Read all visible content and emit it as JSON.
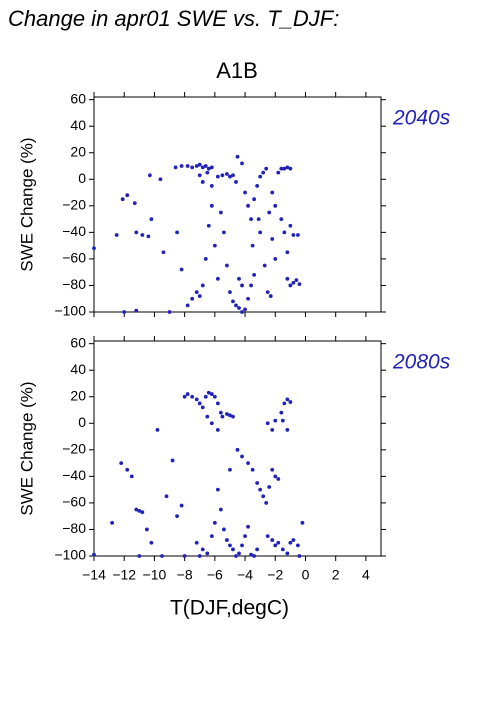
{
  "title": "Change in apr01 SWE vs. T_DJF:",
  "chart_data": [
    {
      "type": "scatter",
      "title": "A1B",
      "annotation": "2040s",
      "y_label": "SWE Change (%)",
      "color": "#2222b8",
      "xlim": [
        -14,
        5
      ],
      "ylim": [
        -100,
        62
      ],
      "xticks": [
        -14,
        -12,
        -10,
        -8,
        -6,
        -4,
        -2,
        0,
        2,
        4
      ],
      "yticks": [
        {
          "value": 60,
          "label": "60"
        },
        {
          "value": 40,
          "label": "40"
        },
        {
          "value": 20,
          "label": "20"
        },
        {
          "value": 0,
          "label": "0"
        },
        {
          "value": -20,
          "label": "−20"
        },
        {
          "value": -40,
          "label": "−40"
        },
        {
          "value": -60,
          "label": "−60"
        },
        {
          "value": -80,
          "label": "−80"
        },
        {
          "value": -100,
          "label": "−100"
        }
      ],
      "x": [
        -14,
        -12.5,
        -12.1,
        -11.8,
        -11.3,
        -11.2,
        -10.8,
        -10.4,
        -10.2,
        -10.3,
        -9.6,
        -9.4,
        -8.6,
        -8.2,
        -7.8,
        -7.5,
        -7.2,
        -7.0,
        -6.8,
        -6.6,
        -6.4,
        -6.2,
        -6.5,
        -7.0,
        -6.8,
        -6.2,
        -5.8,
        -5.5,
        -5.2,
        -5.0,
        -4.8,
        -4.6,
        -4.5,
        -4.2,
        -8.5,
        -8.2,
        -7.8,
        -7.5,
        -7.2,
        -7.0,
        -6.8,
        -6.6,
        -6.4,
        -6.2,
        -6.0,
        -5.8,
        -5.6,
        -5.4,
        -5.2,
        -5.0,
        -4.8,
        -4.6,
        -4.4,
        -4.2,
        -4.0,
        -3.8,
        -3.6,
        -3.4,
        -4.4,
        -4.2,
        -4.0,
        -3.8,
        -3.6,
        -3.4,
        -3.2,
        -3.0,
        -2.8,
        -2.6,
        -2.4,
        -2.2,
        -2.0,
        -2.2,
        -2.0,
        -1.8,
        -1.6,
        -1.4,
        -1.2,
        -1.0,
        -1.6,
        -1.4,
        -1.2,
        -1.0,
        -0.8,
        -0.5,
        -1.2,
        -1.0,
        -0.8,
        -0.6,
        -0.4,
        -12,
        -11.2,
        -9,
        -3.5,
        -3.0,
        -2.7,
        -2.5,
        -2.3,
        -3.1
      ],
      "values": [
        -52,
        -42,
        -15,
        -12,
        -18,
        -40,
        -42,
        -43,
        -30,
        3,
        0,
        -55,
        9,
        10,
        10,
        9,
        10,
        11,
        9,
        10,
        8,
        9,
        5,
        3,
        -2,
        -5,
        2,
        3,
        4,
        2,
        3,
        -2,
        17,
        12,
        -40,
        -68,
        -95,
        -90,
        -85,
        -88,
        -80,
        -60,
        -35,
        -20,
        -50,
        -75,
        -25,
        -40,
        -65,
        -85,
        -92,
        -95,
        -97,
        -100,
        -98,
        -90,
        -80,
        -72,
        -75,
        -80,
        -10,
        -20,
        -30,
        -15,
        -5,
        2,
        5,
        8,
        -25,
        -45,
        -60,
        -10,
        -20,
        5,
        8,
        8,
        9,
        8,
        -30,
        -40,
        -55,
        -35,
        -42,
        -42,
        -75,
        -80,
        -78,
        -76,
        -79,
        -100,
        -99,
        -100,
        -50,
        -40,
        -65,
        -85,
        -88,
        -30
      ]
    },
    {
      "type": "scatter",
      "annotation": "2080s",
      "y_label": "SWE Change (%)",
      "x_label": "T(DJF,degC)",
      "color": "#2222b8",
      "xlim": [
        -14,
        5
      ],
      "ylim": [
        -100,
        62
      ],
      "xticks": [
        {
          "value": -14,
          "label": "−14"
        },
        {
          "value": -12,
          "label": "−12"
        },
        {
          "value": -10,
          "label": "−10"
        },
        {
          "value": -8,
          "label": "−8"
        },
        {
          "value": -6,
          "label": "−6"
        },
        {
          "value": -4,
          "label": "−4"
        },
        {
          "value": -2,
          "label": "−2"
        },
        {
          "value": 0,
          "label": "0"
        },
        {
          "value": 2,
          "label": "2"
        },
        {
          "value": 4,
          "label": "4"
        }
      ],
      "yticks": [
        {
          "value": 60,
          "label": "60"
        },
        {
          "value": 40,
          "label": "40"
        },
        {
          "value": 20,
          "label": "20"
        },
        {
          "value": 0,
          "label": "0"
        },
        {
          "value": -20,
          "label": "−20"
        },
        {
          "value": -40,
          "label": "−40"
        },
        {
          "value": -60,
          "label": "−60"
        },
        {
          "value": -80,
          "label": "−80"
        },
        {
          "value": -100,
          "label": "−100"
        }
      ],
      "x": [
        -14,
        -12.8,
        -12.2,
        -11.8,
        -11.5,
        -11.2,
        -11.0,
        -10.8,
        -10.5,
        -10.2,
        -9.8,
        -9.5,
        -9.2,
        -8.8,
        -8.5,
        -8.2,
        -8.0,
        -7.8,
        -7.5,
        -7.2,
        -7.0,
        -6.8,
        -6.6,
        -6.4,
        -6.2,
        -6.0,
        -5.8,
        -5.6,
        -6.5,
        -6.2,
        -5.8,
        -5.5,
        -5.2,
        -5.0,
        -4.8,
        -7.2,
        -6.8,
        -6.5,
        -6.2,
        -6.0,
        -5.8,
        -5.6,
        -5.4,
        -5.2,
        -5.0,
        -4.8,
        -4.6,
        -4.4,
        -4.2,
        -4.0,
        -3.8,
        -3.6,
        -3.4,
        -3.2,
        -5.0,
        -4.5,
        -4.2,
        -3.8,
        -3.5,
        -3.2,
        -3.0,
        -2.8,
        -2.6,
        -2.4,
        -2.2,
        -2.0,
        -1.8,
        -2.5,
        -2.2,
        -2.0,
        -1.6,
        -1.4,
        -1.2,
        -1.0,
        -1.5,
        -1.2,
        -2.5,
        -2.2,
        -2.0,
        -1.8,
        -1.5,
        -1.2,
        -1.0,
        -0.8,
        -0.5,
        -0.2,
        -0.4,
        -11.0,
        -8.0,
        -7.0
      ],
      "values": [
        -99,
        -75,
        -30,
        -35,
        -40,
        -65,
        -66,
        -67,
        -80,
        -90,
        -5,
        -100,
        -55,
        -28,
        -70,
        -62,
        20,
        22,
        20,
        18,
        15,
        12,
        20,
        23,
        22,
        20,
        15,
        8,
        5,
        0,
        -5,
        5,
        7,
        6,
        5,
        -90,
        -95,
        -98,
        -85,
        -75,
        -50,
        -65,
        -80,
        -88,
        -92,
        -95,
        -100,
        -98,
        -92,
        -85,
        -78,
        -99,
        -100,
        -95,
        -35,
        -20,
        -25,
        -30,
        -35,
        -45,
        -50,
        -55,
        -60,
        -48,
        -35,
        -40,
        -42,
        0,
        -5,
        2,
        8,
        15,
        18,
        16,
        2,
        -5,
        -85,
        -88,
        -92,
        -90,
        -95,
        -98,
        -90,
        -88,
        -92,
        -75,
        -100,
        -100,
        -100,
        -100
      ]
    }
  ]
}
